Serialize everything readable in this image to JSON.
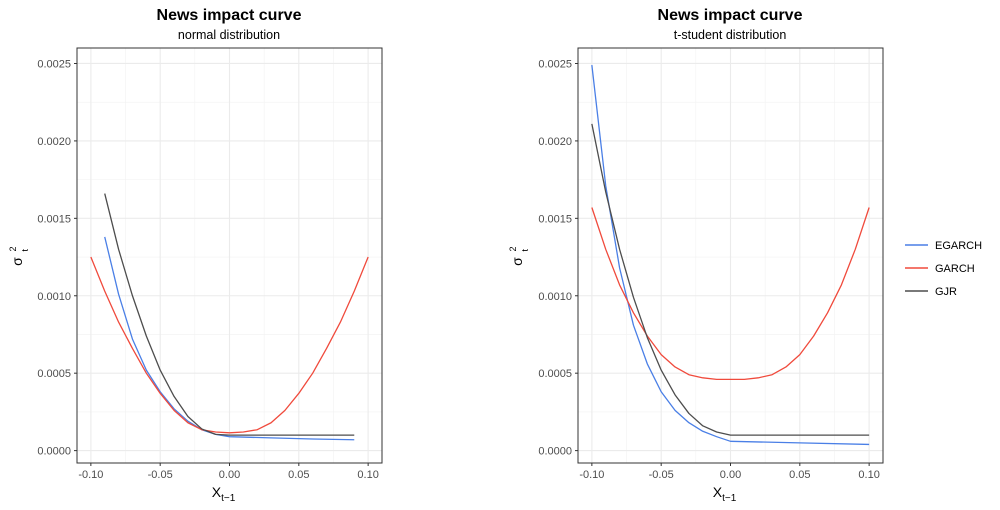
{
  "chart_data": [
    {
      "type": "line",
      "title": "News impact curve",
      "subtitle": "normal distribution",
      "xlabel": "X",
      "xlabel_sub": "t−1",
      "ylabel": "σ",
      "ylabel_sup": "2",
      "ylabel_sub": "t",
      "xlim": [
        -0.11,
        0.11
      ],
      "ylim": [
        -8e-05,
        0.0026
      ],
      "xticks": [
        -0.1,
        -0.05,
        0.0,
        0.05,
        0.1
      ],
      "xtick_labels": [
        "-0.10",
        "-0.05",
        "0.00",
        "0.05",
        "0.10"
      ],
      "yticks": [
        0.0,
        0.0005,
        0.001,
        0.0015,
        0.002,
        0.0025
      ],
      "ytick_labels": [
        "0.0000",
        "0.0005",
        "0.0010",
        "0.0015",
        "0.0020",
        "0.0025"
      ],
      "grid": true,
      "series": [
        {
          "name": "EGARCH",
          "color": "#4a7fe6",
          "x": [
            -0.09,
            -0.08,
            -0.07,
            -0.06,
            -0.05,
            -0.04,
            -0.03,
            -0.02,
            -0.01,
            0.0,
            0.03,
            0.06,
            0.09
          ],
          "y": [
            0.00138,
            0.00101,
            0.00072,
            0.00052,
            0.00038,
            0.00027,
            0.00019,
            0.000135,
            0.000105,
            9e-05,
            8.2e-05,
            7.5e-05,
            7e-05
          ]
        },
        {
          "name": "GARCH",
          "color": "#f04a3c",
          "x": [
            -0.1,
            -0.09,
            -0.08,
            -0.07,
            -0.06,
            -0.05,
            -0.04,
            -0.03,
            -0.02,
            -0.01,
            0.0,
            0.01,
            0.02,
            0.03,
            0.04,
            0.05,
            0.06,
            0.07,
            0.08,
            0.09,
            0.1
          ],
          "y": [
            0.00125,
            0.00103,
            0.00083,
            0.00066,
            0.0005,
            0.00037,
            0.00026,
            0.00018,
            0.000135,
            0.00012,
            0.000115,
            0.00012,
            0.000135,
            0.00018,
            0.00026,
            0.00037,
            0.0005,
            0.00066,
            0.00083,
            0.00103,
            0.00125
          ]
        },
        {
          "name": "GJR",
          "color": "#4d4d4d",
          "x": [
            -0.09,
            -0.08,
            -0.07,
            -0.06,
            -0.05,
            -0.04,
            -0.03,
            -0.02,
            -0.01,
            0.0,
            0.03,
            0.06,
            0.09
          ],
          "y": [
            0.00166,
            0.0013,
            0.001,
            0.00074,
            0.00052,
            0.00035,
            0.00022,
            0.00014,
            0.000105,
            0.0001,
            0.0001,
            0.0001,
            0.0001
          ]
        }
      ]
    },
    {
      "type": "line",
      "title": "News impact curve",
      "subtitle": "t-student distribution",
      "xlabel": "X",
      "xlabel_sub": "t−1",
      "ylabel": "σ",
      "ylabel_sup": "2",
      "ylabel_sub": "t",
      "xlim": [
        -0.11,
        0.11
      ],
      "ylim": [
        -8e-05,
        0.0026
      ],
      "xticks": [
        -0.1,
        -0.05,
        0.0,
        0.05,
        0.1
      ],
      "xtick_labels": [
        "-0.10",
        "-0.05",
        "0.00",
        "0.05",
        "0.10"
      ],
      "yticks": [
        0.0,
        0.0005,
        0.001,
        0.0015,
        0.002,
        0.0025
      ],
      "ytick_labels": [
        "0.0000",
        "0.0005",
        "0.0010",
        "0.0015",
        "0.0020",
        "0.0025"
      ],
      "grid": true,
      "series": [
        {
          "name": "EGARCH",
          "color": "#4a7fe6",
          "x": [
            -0.1,
            -0.09,
            -0.08,
            -0.07,
            -0.06,
            -0.05,
            -0.04,
            -0.03,
            -0.02,
            -0.01,
            0.0,
            0.05,
            0.1
          ],
          "y": [
            0.00249,
            0.00171,
            0.00118,
            0.00081,
            0.00056,
            0.00038,
            0.00026,
            0.00018,
            0.000125,
            9e-05,
            6e-05,
            5e-05,
            4e-05
          ]
        },
        {
          "name": "GARCH",
          "color": "#f04a3c",
          "x": [
            -0.1,
            -0.09,
            -0.08,
            -0.07,
            -0.06,
            -0.05,
            -0.04,
            -0.03,
            -0.02,
            -0.01,
            0.0,
            0.01,
            0.02,
            0.03,
            0.04,
            0.05,
            0.06,
            0.07,
            0.08,
            0.09,
            0.1
          ],
          "y": [
            0.00157,
            0.0013,
            0.00107,
            0.00089,
            0.00074,
            0.00062,
            0.00054,
            0.00049,
            0.00047,
            0.00046,
            0.00046,
            0.00046,
            0.00047,
            0.00049,
            0.00054,
            0.00062,
            0.00074,
            0.00089,
            0.00107,
            0.0013,
            0.00157
          ]
        },
        {
          "name": "GJR",
          "color": "#4d4d4d",
          "x": [
            -0.1,
            -0.09,
            -0.08,
            -0.07,
            -0.06,
            -0.05,
            -0.04,
            -0.03,
            -0.02,
            -0.01,
            0.0,
            0.05,
            0.1
          ],
          "y": [
            0.00211,
            0.00167,
            0.0013,
            0.00099,
            0.00073,
            0.00052,
            0.00036,
            0.00024,
            0.00016,
            0.00012,
            0.0001,
            0.0001,
            0.0001
          ]
        }
      ]
    }
  ],
  "legend": {
    "placement": "right",
    "entries": [
      {
        "label": "EGARCH",
        "color": "#4a7fe6"
      },
      {
        "label": "GARCH",
        "color": "#f04a3c"
      },
      {
        "label": "GJR",
        "color": "#4d4d4d"
      }
    ]
  }
}
